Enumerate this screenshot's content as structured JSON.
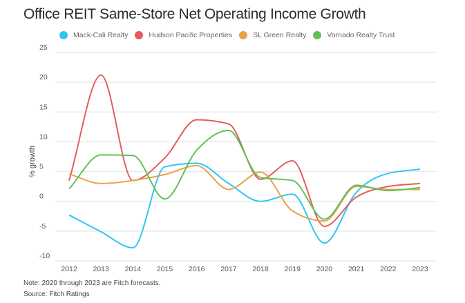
{
  "chart_data": {
    "type": "line",
    "title": "Office REIT Same-Store Net Operating Income Growth",
    "xlabel": "",
    "ylabel": "% growth",
    "x": [
      2012,
      2013,
      2014,
      2015,
      2016,
      2017,
      2018,
      2019,
      2020,
      2021,
      2022,
      2023
    ],
    "x_tick_labels": [
      "2012",
      "2013",
      "2014",
      "2015",
      "2016",
      "2017",
      "2018",
      "2019",
      "2020",
      "2021",
      "2022",
      "2023"
    ],
    "ylim": [
      -10,
      25
    ],
    "y_ticks": [
      25,
      20,
      15,
      10,
      5,
      0,
      -5,
      -10
    ],
    "y_tick_labels": [
      "25",
      "20",
      "15",
      "10",
      "5",
      "0",
      "-5",
      "-10"
    ],
    "grid": true,
    "legend_position": "top-center",
    "smooth": true,
    "series": [
      {
        "name": "Mack-Cali Realty",
        "color": "#2ec5f5",
        "values": [
          -2.3,
          -5.1,
          -7.8,
          5.8,
          6.4,
          3.0,
          0.0,
          1.2,
          -7.0,
          1.5,
          4.7,
          5.4
        ]
      },
      {
        "name": "Hudson Pacific Properties",
        "color": "#e35d5d",
        "values": [
          3.5,
          21.2,
          3.5,
          7.3,
          13.7,
          13.0,
          3.7,
          6.8,
          -4.2,
          0.7,
          2.5,
          3.0
        ]
      },
      {
        "name": "SL Green Realty",
        "color": "#e8a24a",
        "values": [
          4.6,
          3.0,
          3.5,
          4.5,
          6.0,
          2.0,
          4.9,
          -1.6,
          -3.3,
          2.5,
          2.0,
          2.0
        ]
      },
      {
        "name": "Vornado Realty Trust",
        "color": "#5ec454",
        "values": [
          2.1,
          7.8,
          7.7,
          0.4,
          8.6,
          11.9,
          4.0,
          3.5,
          -3.0,
          2.7,
          1.8,
          2.3
        ]
      }
    ]
  },
  "notes": {
    "note": "Note: 2020 through 2023 are Fitch forecasts.",
    "source": "Source:  Fitch Ratings"
  }
}
